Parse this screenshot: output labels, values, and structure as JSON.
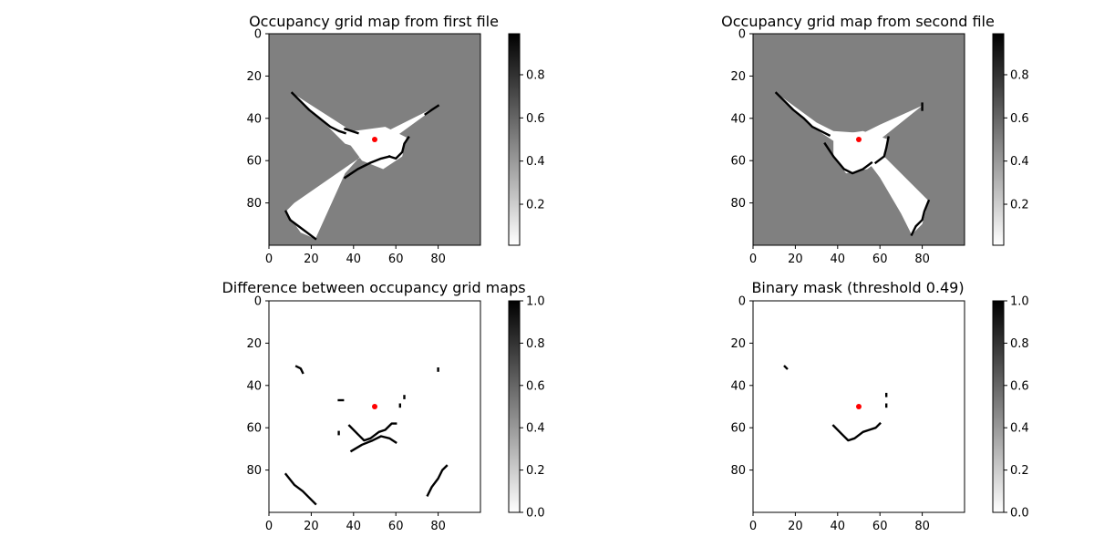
{
  "chart_data": [
    {
      "type": "heatmap",
      "title": "Occupancy grid map from first file",
      "x_ticks": [
        "0",
        "20",
        "40",
        "60",
        "80"
      ],
      "y_ticks": [
        "0",
        "20",
        "40",
        "60",
        "80"
      ],
      "xlim": [
        0,
        100
      ],
      "ylim": [
        100,
        0
      ],
      "colormap": "gray_r",
      "background_value": 0.5,
      "colorbar": {
        "ticks": [
          "0.2",
          "0.4",
          "0.6",
          "0.8"
        ],
        "range": [
          0.01,
          0.99
        ]
      },
      "robot_position": {
        "x": 50,
        "y": 50,
        "color": "#ff0000"
      },
      "free_regions": [
        {
          "name": "upper-left arm",
          "points": [
            [
              11,
              28
            ],
            [
              36,
              44
            ],
            [
              38,
              46
            ],
            [
              50,
              48
            ],
            [
              56,
              46
            ],
            [
              60,
              44
            ],
            [
              80,
              34
            ],
            [
              58,
              50
            ],
            [
              48,
              56
            ],
            [
              36,
              52
            ],
            [
              28,
              44
            ]
          ]
        },
        {
          "name": "lower-left arm",
          "points": [
            [
              50,
              50
            ],
            [
              45,
              56
            ],
            [
              36,
              66
            ],
            [
              22,
              97
            ],
            [
              15,
              94
            ],
            [
              8,
              84
            ],
            [
              12,
              80
            ],
            [
              38,
              62
            ],
            [
              50,
              54
            ]
          ]
        },
        {
          "name": "center",
          "points": [
            [
              40,
              46
            ],
            [
              55,
              44
            ],
            [
              65,
              49
            ],
            [
              63,
              58
            ],
            [
              54,
              64
            ],
            [
              44,
              60
            ],
            [
              38,
              52
            ]
          ]
        }
      ],
      "wall_segments": [
        {
          "points": [
            [
              11,
              28
            ],
            [
              15,
              32
            ],
            [
              19,
              36
            ],
            [
              24,
              40
            ],
            [
              29,
              44
            ],
            [
              33,
              46
            ],
            [
              36,
              47
            ]
          ]
        },
        {
          "points": [
            [
              8,
              84
            ],
            [
              10,
              88
            ],
            [
              14,
              91
            ],
            [
              18,
              94
            ],
            [
              22,
              97
            ]
          ]
        },
        {
          "points": [
            [
              36,
              68
            ],
            [
              42,
              64
            ],
            [
              48,
              61
            ],
            [
              53,
              59
            ],
            [
              57,
              58
            ]
          ]
        },
        {
          "points": [
            [
              57,
              58
            ],
            [
              60,
              59
            ],
            [
              63,
              56
            ],
            [
              64,
              52
            ],
            [
              66,
              49
            ]
          ]
        },
        {
          "points": [
            [
              74,
              38
            ],
            [
              77,
              36
            ],
            [
              80,
              34
            ]
          ]
        },
        {
          "points": [
            [
              36,
              45
            ],
            [
              39,
              46
            ],
            [
              42,
              47
            ]
          ]
        }
      ]
    },
    {
      "type": "heatmap",
      "title": "Occupancy grid map from second file",
      "x_ticks": [
        "0",
        "20",
        "40",
        "60",
        "80"
      ],
      "y_ticks": [
        "0",
        "20",
        "40",
        "60",
        "80"
      ],
      "xlim": [
        0,
        100
      ],
      "ylim": [
        100,
        0
      ],
      "colormap": "gray_r",
      "background_value": 0.5,
      "colorbar": {
        "ticks": [
          "0.2",
          "0.4",
          "0.6",
          "0.8"
        ],
        "range": [
          0.01,
          0.99
        ]
      },
      "robot_position": {
        "x": 50,
        "y": 50,
        "color": "#ff0000"
      },
      "free_regions": [
        {
          "name": "upper-left arm",
          "points": [
            [
              11,
              28
            ],
            [
              30,
              42
            ],
            [
              38,
              46
            ],
            [
              52,
              47
            ],
            [
              60,
              43
            ],
            [
              80,
              34
            ],
            [
              60,
              50
            ],
            [
              52,
              54
            ],
            [
              40,
              52
            ],
            [
              28,
              44
            ]
          ]
        },
        {
          "name": "center",
          "points": [
            [
              38,
              48
            ],
            [
              52,
              46
            ],
            [
              64,
              50
            ],
            [
              62,
              58
            ],
            [
              54,
              64
            ],
            [
              44,
              66
            ],
            [
              38,
              58
            ]
          ]
        },
        {
          "name": "lower-right arm",
          "points": [
            [
              55,
              55
            ],
            [
              62,
              58
            ],
            [
              83,
              79
            ],
            [
              80,
              90
            ],
            [
              75,
              95
            ],
            [
              70,
              85
            ],
            [
              60,
              68
            ],
            [
              54,
              60
            ]
          ]
        }
      ],
      "wall_segments": [
        {
          "points": [
            [
              11,
              28
            ],
            [
              15,
              32
            ],
            [
              19,
              36
            ],
            [
              24,
              40
            ],
            [
              28,
              44
            ],
            [
              32,
              46
            ],
            [
              36,
              48
            ]
          ]
        },
        {
          "points": [
            [
              34,
              52
            ],
            [
              38,
              58
            ],
            [
              43,
              64
            ],
            [
              47,
              66
            ],
            [
              52,
              64
            ],
            [
              56,
              61
            ]
          ]
        },
        {
          "points": [
            [
              58,
              61
            ],
            [
              62,
              58
            ],
            [
              63,
              54
            ],
            [
              64,
              49
            ]
          ]
        },
        {
          "points": [
            [
              83,
              79
            ],
            [
              81,
              84
            ],
            [
              80,
              88
            ],
            [
              77,
              91
            ],
            [
              75,
              95
            ]
          ]
        },
        {
          "points": [
            [
              80,
              33
            ],
            [
              80,
              36
            ]
          ]
        }
      ]
    },
    {
      "type": "heatmap",
      "title": "Difference between occupancy grid maps",
      "x_ticks": [
        "0",
        "20",
        "40",
        "60",
        "80"
      ],
      "y_ticks": [
        "0",
        "20",
        "40",
        "60",
        "80"
      ],
      "xlim": [
        0,
        100
      ],
      "ylim": [
        100,
        0
      ],
      "colormap": "gray_r",
      "background_value": 0.0,
      "colorbar": {
        "ticks": [
          "0.0",
          "0.2",
          "0.4",
          "0.6",
          "0.8",
          "1.0"
        ],
        "range": [
          0,
          1
        ]
      },
      "robot_position": {
        "x": 50,
        "y": 50,
        "color": "#ff0000"
      },
      "free_regions": [],
      "wall_segments": [
        {
          "points": [
            [
              13,
              31
            ],
            [
              15,
              32
            ],
            [
              16,
              34
            ]
          ]
        },
        {
          "points": [
            [
              33,
              47
            ],
            [
              35,
              47
            ]
          ]
        },
        {
          "points": [
            [
              38,
              59
            ],
            [
              42,
              63
            ],
            [
              45,
              66
            ],
            [
              48,
              65
            ],
            [
              52,
              62
            ],
            [
              55,
              61
            ],
            [
              58,
              58
            ],
            [
              60,
              58
            ]
          ]
        },
        {
          "points": [
            [
              39,
              71
            ],
            [
              44,
              68
            ],
            [
              49,
              66
            ],
            [
              53,
              64
            ],
            [
              57,
              65
            ],
            [
              60,
              67
            ]
          ]
        },
        {
          "points": [
            [
              8,
              82
            ],
            [
              12,
              87
            ],
            [
              16,
              90
            ],
            [
              19,
              93
            ],
            [
              22,
              96
            ]
          ]
        },
        {
          "points": [
            [
              75,
              92
            ],
            [
              77,
              88
            ],
            [
              80,
              84
            ],
            [
              82,
              80
            ],
            [
              84,
              78
            ]
          ]
        },
        {
          "points": [
            [
              64,
              45
            ],
            [
              64,
              46
            ]
          ]
        },
        {
          "points": [
            [
              80,
              32
            ],
            [
              80,
              33
            ]
          ]
        },
        {
          "points": [
            [
              33,
              62
            ],
            [
              33,
              63
            ]
          ]
        },
        {
          "points": [
            [
              62,
              49
            ],
            [
              62,
              50
            ]
          ]
        }
      ]
    },
    {
      "type": "heatmap",
      "title": "Binary mask (threshold 0.49)",
      "x_ticks": [
        "0",
        "20",
        "40",
        "60",
        "80"
      ],
      "y_ticks": [
        "0",
        "20",
        "40",
        "60",
        "80"
      ],
      "xlim": [
        0,
        100
      ],
      "ylim": [
        100,
        0
      ],
      "colormap": "gray_r",
      "background_value": 0.0,
      "colorbar": {
        "ticks": [
          "0.0",
          "0.2",
          "0.4",
          "0.6",
          "0.8",
          "1.0"
        ],
        "range": [
          0,
          1
        ]
      },
      "robot_position": {
        "x": 50,
        "y": 50,
        "color": "#ff0000"
      },
      "free_regions": [],
      "wall_segments": [
        {
          "points": [
            [
              15,
              31
            ],
            [
              16,
              32
            ]
          ]
        },
        {
          "points": [
            [
              38,
              59
            ],
            [
              42,
              63
            ],
            [
              45,
              66
            ],
            [
              48,
              65
            ],
            [
              52,
              62
            ],
            [
              55,
              61
            ],
            [
              58,
              60
            ],
            [
              60,
              58
            ]
          ]
        },
        {
          "points": [
            [
              63,
              44
            ],
            [
              63,
              45
            ]
          ]
        },
        {
          "points": [
            [
              63,
              49
            ],
            [
              63,
              50
            ]
          ]
        }
      ]
    }
  ]
}
